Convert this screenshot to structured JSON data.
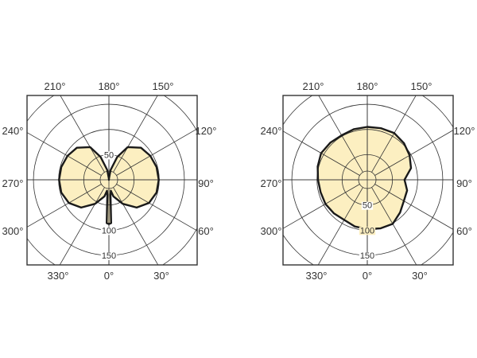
{
  "chart_data": [
    {
      "type": "polar",
      "angle_labels": [
        "210°",
        "180°",
        "150°",
        "240°",
        "270°",
        "300°",
        "120°",
        "90°",
        "60°",
        "330°",
        "0°",
        "30°"
      ],
      "radial_ticks": [
        50,
        100,
        150
      ],
      "radial_tick_side": "mixed",
      "rlim": [
        0,
        200
      ],
      "grid": true,
      "colors": {
        "fill": "#fcefc1",
        "line": "#1a1a1a",
        "grid": "#333333"
      },
      "series": [
        {
          "angles": [
            0,
            3,
            6,
            10,
            15,
            30,
            45,
            60,
            75,
            90,
            105,
            120,
            135,
            150,
            160,
            170,
            178,
            180,
            182,
            190,
            200,
            210,
            225,
            240,
            255,
            270,
            285,
            300,
            315,
            330,
            345,
            350,
            354,
            357
          ],
          "values": [
            88,
            86,
            30,
            22,
            34,
            55,
            78,
            92,
            98,
            99,
            98,
            95,
            90,
            75,
            48,
            20,
            3,
            0,
            3,
            20,
            48,
            75,
            90,
            95,
            98,
            99,
            98,
            92,
            78,
            55,
            34,
            22,
            30,
            86
          ]
        }
      ]
    },
    {
      "type": "polar",
      "angle_labels": [
        "210°",
        "180°",
        "150°",
        "240°",
        "270°",
        "300°",
        "120°",
        "90°",
        "60°",
        "330°",
        "0°",
        "30°"
      ],
      "radial_ticks": [
        50,
        100,
        150
      ],
      "radial_tick_side": "bottom",
      "rlim": [
        0,
        200
      ],
      "grid": true,
      "colors": {
        "fill": "#fcefc1",
        "line": "#1a1a1a",
        "grid": "#333333"
      },
      "series": [
        {
          "angles": [
            0,
            15,
            30,
            45,
            60,
            75,
            85,
            90,
            95,
            105,
            120,
            135,
            150,
            165,
            180,
            195,
            210,
            225,
            240,
            255,
            270,
            285,
            300,
            315,
            330,
            345
          ],
          "values": [
            98,
            100,
            101,
            92,
            84,
            82,
            76,
            74,
            78,
            90,
            97,
            103,
            107,
            106,
            105,
            104,
            102,
            104,
            106,
            102,
            98,
            96,
            96,
            94,
            92,
            96
          ]
        }
      ]
    }
  ]
}
